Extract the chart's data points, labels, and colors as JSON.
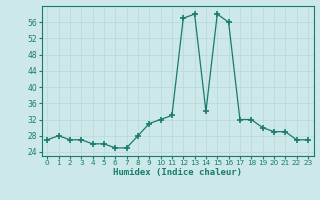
{
  "x": [
    0,
    1,
    2,
    3,
    4,
    5,
    6,
    7,
    8,
    9,
    10,
    11,
    12,
    13,
    14,
    15,
    16,
    17,
    18,
    19,
    20,
    21,
    22,
    23
  ],
  "y": [
    27,
    28,
    27,
    27,
    26,
    26,
    25,
    25,
    28,
    31,
    32,
    33,
    57,
    58,
    34,
    58,
    56,
    32,
    32,
    30,
    29,
    29,
    27,
    27
  ],
  "xlabel": "Humidex (Indice chaleur)",
  "ylabel": "",
  "line_color": "#1a7a6e",
  "bg_color": "#cce8e8",
  "grid_color": "#b8d8d8",
  "ylim": [
    23,
    60
  ],
  "xlim": [
    -0.5,
    23.5
  ],
  "yticks": [
    24,
    28,
    32,
    36,
    40,
    44,
    48,
    52,
    56
  ],
  "xticks": [
    0,
    1,
    2,
    3,
    4,
    5,
    6,
    7,
    8,
    9,
    10,
    11,
    12,
    13,
    14,
    15,
    16,
    17,
    18,
    19,
    20,
    21,
    22,
    23
  ]
}
